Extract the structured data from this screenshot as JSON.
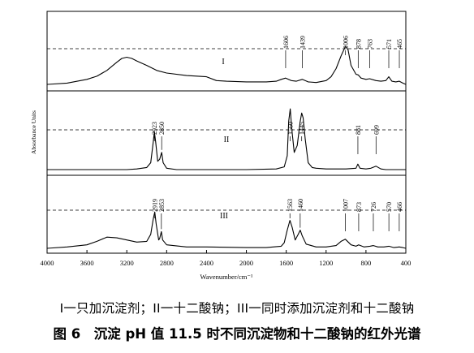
{
  "caption": {
    "legend": "I一只加沉淀剂；II一十二酸钠；III一同时添加沉淀剂和十二酸钠",
    "title": "图 6　沉淀 pH 值 11.5 时不同沉淀物和十二酸钠的红外光谱"
  },
  "chart_data": {
    "type": "line",
    "xlabel": "Wavenumber/cm⁻¹",
    "ylabel": "Absorbance Units",
    "xlim": [
      4000,
      400
    ],
    "x_ticks": [
      "4000",
      "3600",
      "3200",
      "2800",
      "2400",
      "2000",
      "1600",
      "1200",
      "800",
      "400"
    ],
    "grid": false,
    "series": [
      {
        "name": "I",
        "x": [
          4000,
          3800,
          3600,
          3500,
          3400,
          3300,
          3250,
          3200,
          3150,
          3100,
          3000,
          2900,
          2800,
          2600,
          2400,
          2300,
          2200,
          2000,
          1800,
          1700,
          1650,
          1606,
          1550,
          1500,
          1439,
          1380,
          1300,
          1200,
          1150,
          1100,
          1050,
          1006,
          980,
          950,
          900,
          878,
          850,
          800,
          763,
          700,
          650,
          600,
          571,
          540,
          500,
          465,
          430,
          400
        ],
        "y": [
          0.0,
          0.02,
          0.08,
          0.13,
          0.22,
          0.35,
          0.41,
          0.43,
          0.41,
          0.37,
          0.3,
          0.22,
          0.18,
          0.14,
          0.12,
          0.06,
          0.05,
          0.04,
          0.04,
          0.05,
          0.08,
          0.1,
          0.06,
          0.05,
          0.08,
          0.04,
          0.03,
          0.06,
          0.12,
          0.25,
          0.45,
          0.6,
          0.55,
          0.3,
          0.16,
          0.15,
          0.1,
          0.08,
          0.09,
          0.06,
          0.05,
          0.06,
          0.12,
          0.05,
          0.04,
          0.05,
          0.02,
          0.0
        ],
        "peaks": [
          1606,
          1439,
          1006,
          878,
          763,
          571,
          465
        ],
        "peak_labels": [
          "1606",
          "1439",
          "1006",
          "878",
          "763",
          "571",
          "465"
        ]
      },
      {
        "name": "II",
        "x": [
          4000,
          3600,
          3400,
          3200,
          3100,
          3000,
          2960,
          2935,
          2923,
          2910,
          2890,
          2870,
          2850,
          2835,
          2800,
          2700,
          2400,
          2000,
          1700,
          1620,
          1590,
          1575,
          1560,
          1545,
          1520,
          1490,
          1460,
          1445,
          1430,
          1410,
          1380,
          1340,
          1300,
          1200,
          1000,
          900,
          881,
          860,
          800,
          750,
          699,
          650,
          600,
          500,
          400
        ],
        "y": [
          0.0,
          0.0,
          0.0,
          0.0,
          0.01,
          0.03,
          0.1,
          0.4,
          0.55,
          0.4,
          0.12,
          0.15,
          0.25,
          0.1,
          0.02,
          0.0,
          0.0,
          0.0,
          0.01,
          0.04,
          0.2,
          0.7,
          0.88,
          0.6,
          0.25,
          0.35,
          0.7,
          0.82,
          0.75,
          0.45,
          0.1,
          0.03,
          0.02,
          0.01,
          0.01,
          0.02,
          0.08,
          0.02,
          0.01,
          0.02,
          0.05,
          0.01,
          0.0,
          0.0,
          0.0
        ],
        "peaks": [
          2923,
          2850,
          1560,
          1445,
          881,
          699
        ],
        "peak_labels": [
          "2923",
          "2850",
          "1560",
          "1445",
          "881",
          "699"
        ]
      },
      {
        "name": "III",
        "x": [
          4000,
          3800,
          3600,
          3500,
          3400,
          3300,
          3200,
          3100,
          3000,
          2960,
          2935,
          2919,
          2905,
          2880,
          2870,
          2853,
          2840,
          2800,
          2600,
          2400,
          2000,
          1800,
          1650,
          1620,
          1590,
          1563,
          1540,
          1510,
          1480,
          1460,
          1440,
          1400,
          1300,
          1200,
          1100,
          1050,
          1007,
          950,
          900,
          873,
          820,
          760,
          726,
          680,
          620,
          570,
          520,
          466,
          430,
          400
        ],
        "y": [
          0.0,
          0.02,
          0.05,
          0.1,
          0.16,
          0.15,
          0.12,
          0.09,
          0.1,
          0.2,
          0.42,
          0.52,
          0.35,
          0.12,
          0.14,
          0.24,
          0.12,
          0.05,
          0.02,
          0.02,
          0.01,
          0.01,
          0.03,
          0.08,
          0.26,
          0.4,
          0.3,
          0.12,
          0.2,
          0.26,
          0.18,
          0.06,
          0.02,
          0.02,
          0.04,
          0.1,
          0.13,
          0.05,
          0.03,
          0.05,
          0.02,
          0.03,
          0.04,
          0.02,
          0.02,
          0.03,
          0.01,
          0.02,
          0.01,
          0.0
        ],
        "peaks": [
          2919,
          2853,
          1563,
          1460,
          1007,
          873,
          726,
          570,
          466
        ],
        "peak_labels": [
          "2919",
          "2853",
          "1563",
          "1460",
          "1007",
          "873",
          "726",
          "570",
          "466"
        ]
      }
    ]
  }
}
